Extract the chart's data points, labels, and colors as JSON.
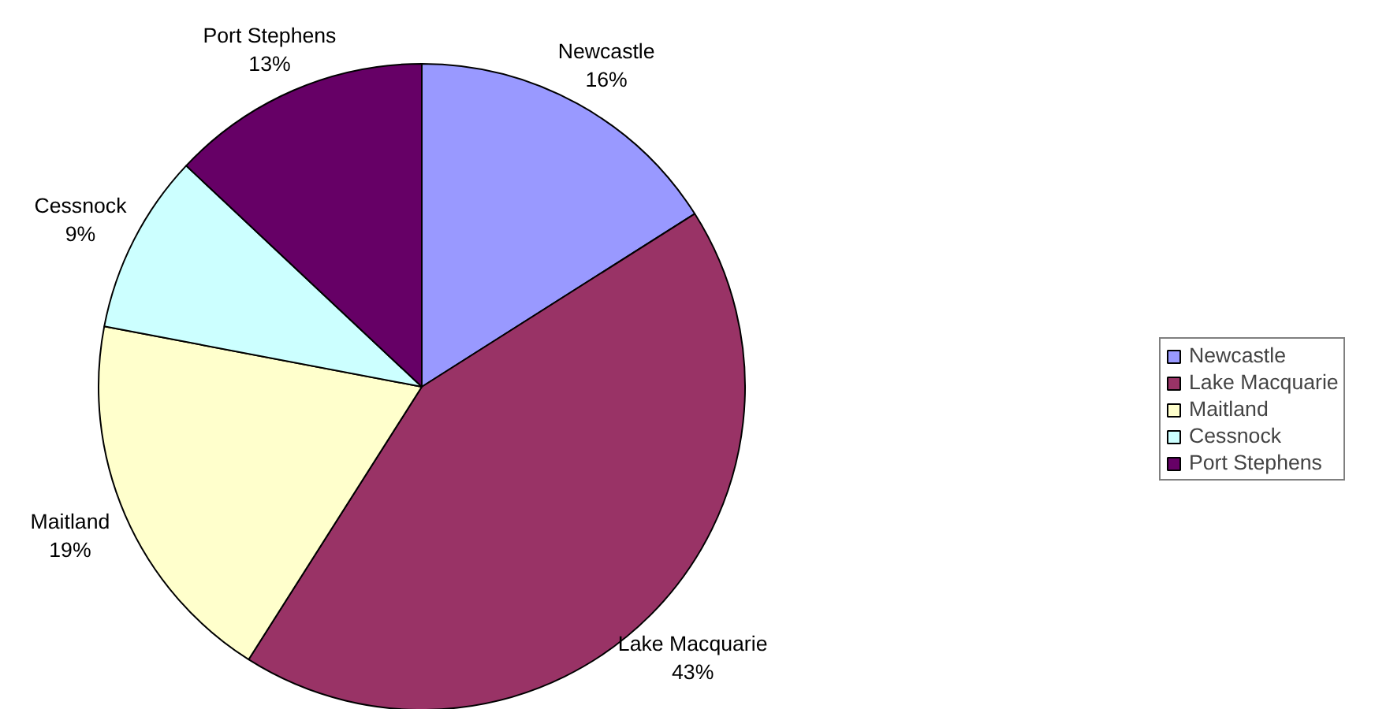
{
  "chart_data": {
    "type": "pie",
    "categories": [
      "Newcastle",
      "Lake Macquarie",
      "Maitland",
      "Cessnock",
      "Port Stephens"
    ],
    "values": [
      16,
      43,
      19,
      9,
      13
    ],
    "value_labels": [
      "16%",
      "43%",
      "19%",
      "9%",
      "13%"
    ],
    "colors": [
      "#9999ff",
      "#993366",
      "#ffffcc",
      "#ccffff",
      "#660066"
    ],
    "legend": "right"
  }
}
